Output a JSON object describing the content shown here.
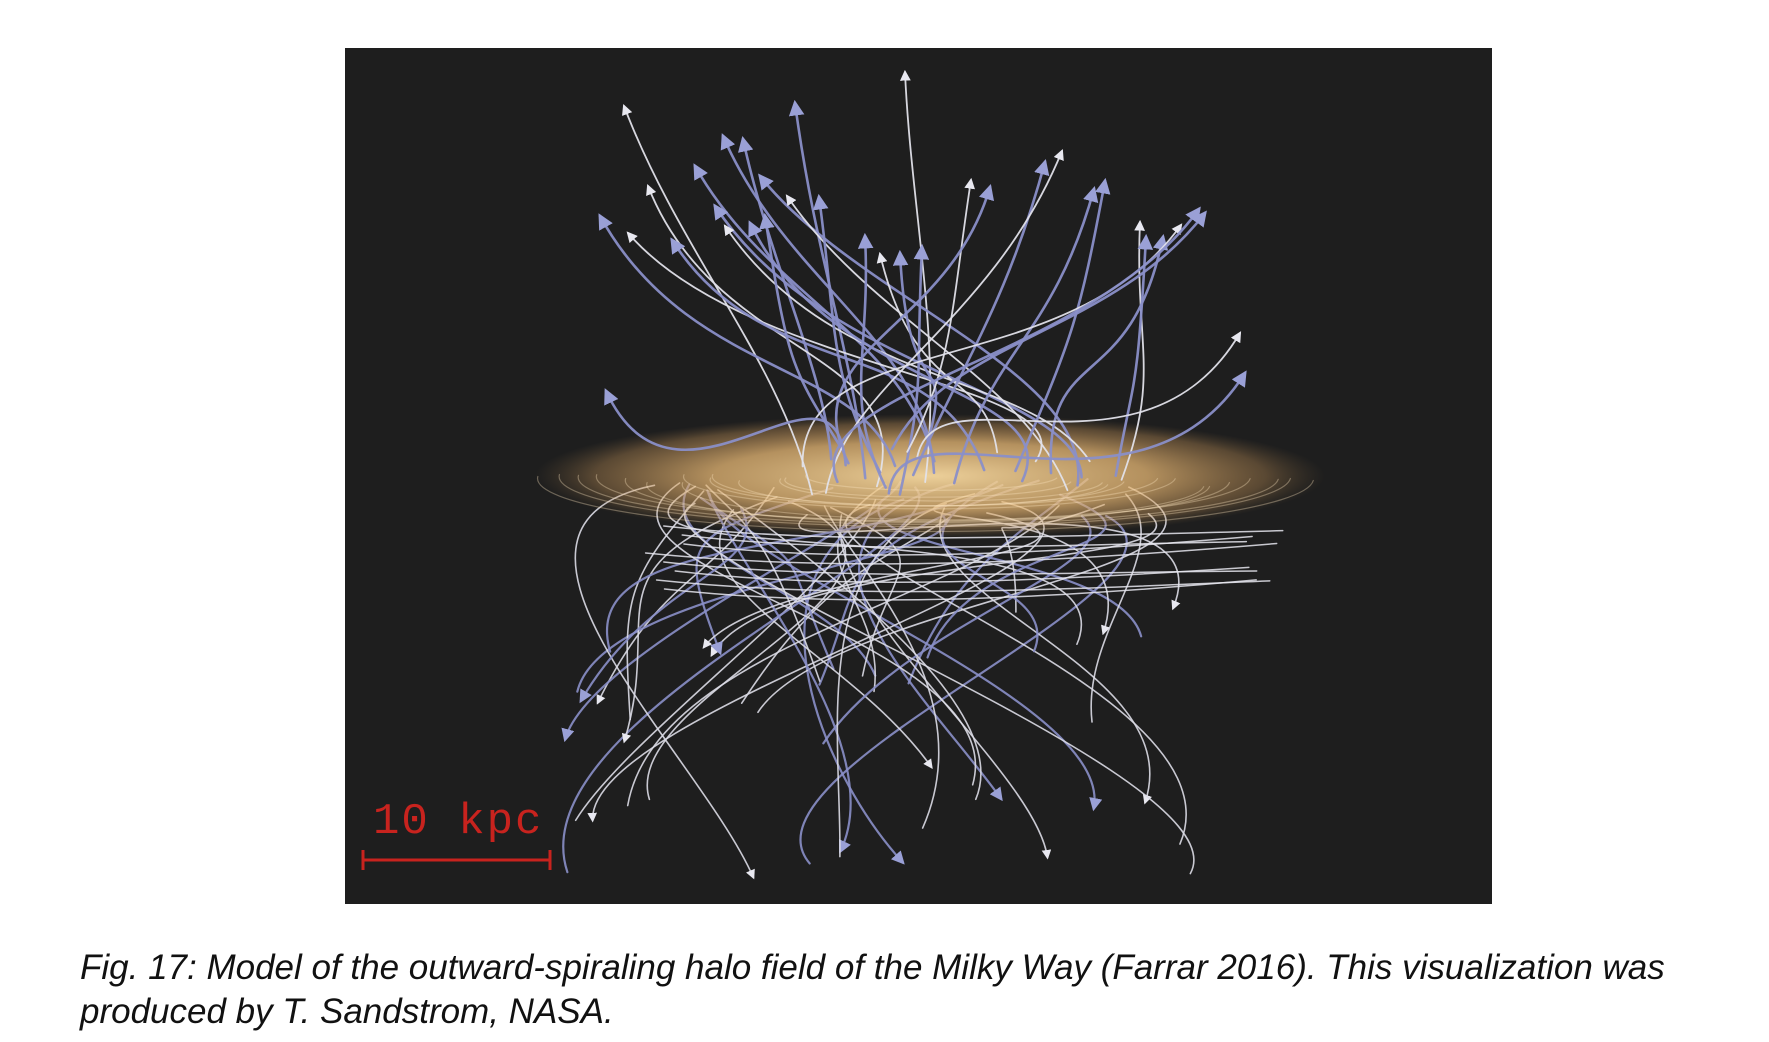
{
  "figure": {
    "scale_bar_label": "10 kpc",
    "colors": {
      "background": "#1e1e1e",
      "disk": "#f2c98a",
      "field_line_blue": "#8a8fc8",
      "field_line_white": "#e6e6ee",
      "scale_bar": "#c8231e"
    }
  },
  "caption": {
    "line1": "Fig. 17: Model of the outward-spiraling halo field of the Milky Way (Farrar 2016). This visualization was",
    "line2": "produced by T. Sandstrom, NASA."
  }
}
